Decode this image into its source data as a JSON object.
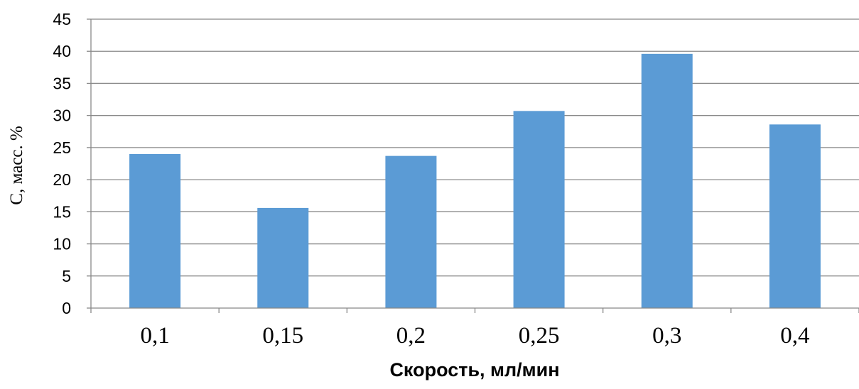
{
  "chart_data": {
    "type": "bar",
    "title": "",
    "xlabel": "Скорость, мл/мин",
    "ylabel": "С, масс. %",
    "categories": [
      "0,1",
      "0,15",
      "0,2",
      "0,25",
      "0,3",
      "0,4"
    ],
    "values": [
      24,
      15.6,
      23.7,
      30.7,
      39.6,
      28.6
    ],
    "ylim": [
      0,
      45
    ],
    "yticks": [
      0,
      5,
      10,
      15,
      20,
      25,
      30,
      35,
      40,
      45
    ],
    "grid": "horizontal",
    "legend": "none",
    "colors": {
      "bar": "#5b9bd5",
      "grid": "#888888",
      "axis": "#888888"
    }
  }
}
